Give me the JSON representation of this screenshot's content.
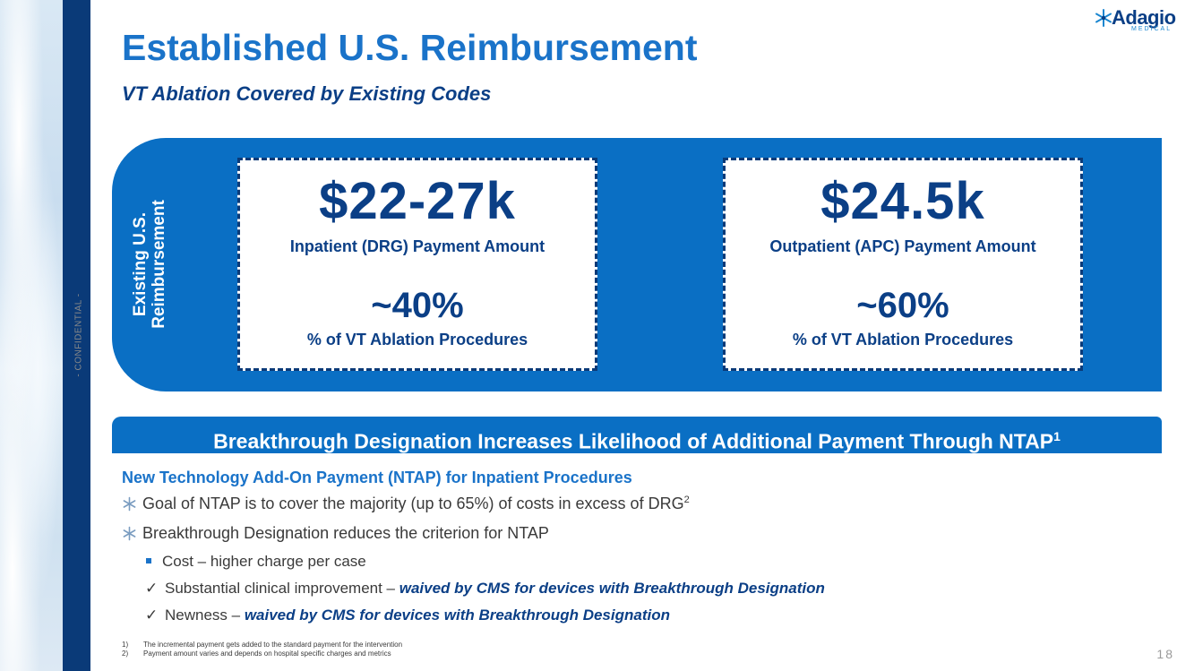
{
  "confidential_label": "- CONFIDENTIAL -",
  "logo": {
    "word": "Adagio",
    "sub": "MEDICAL",
    "tm": "™"
  },
  "title": "Established U.S. Reimbursement",
  "subtitle": "VT Ablation Covered by Existing Codes",
  "band": {
    "label_line1": "Existing U.S.",
    "label_line2": "Reimbursement",
    "cards": [
      {
        "amount": "$22-27k",
        "amount_label": "Inpatient (DRG) Payment Amount",
        "pct": "~40%",
        "pct_label": "% of VT Ablation Procedures"
      },
      {
        "amount": "$24.5k",
        "amount_label": "Outpatient (APC) Payment Amount",
        "pct": "~60%",
        "pct_label": "% of VT Ablation Procedures"
      }
    ]
  },
  "breakthrough": {
    "text": "Breakthrough Designation Increases Likelihood of Additional Payment Through NTAP",
    "sup": "1"
  },
  "ntap": {
    "heading": "New Technology Add-On Payment (NTAP) for Inpatient Procedures",
    "bullets": [
      {
        "text": "Goal of NTAP is to cover the majority (up to 65%) of costs in excess of DRG",
        "sup": "2"
      },
      {
        "text": "Breakthrough Designation reduces the criterion for NTAP"
      }
    ],
    "sub_items": [
      {
        "marker": "square",
        "text": "Cost – higher charge per case",
        "emph": ""
      },
      {
        "marker": "✓",
        "text": "Substantial clinical improvement – ",
        "emph": "waived by CMS for devices with Breakthrough Designation"
      },
      {
        "marker": "✓",
        "text": "Newness – ",
        "emph": "waived by CMS for devices with Breakthrough Designation"
      }
    ]
  },
  "footnotes": [
    {
      "num": "1)",
      "text": "The incremental payment gets added to the standard payment for the intervention"
    },
    {
      "num": "2)",
      "text": "Payment amount varies and depends on hospital specific charges and metrics"
    }
  ],
  "page_number": "18",
  "colors": {
    "brand_blue": "#1a73c9",
    "navy": "#0b3f86",
    "band_blue": "#0a6fc4"
  }
}
